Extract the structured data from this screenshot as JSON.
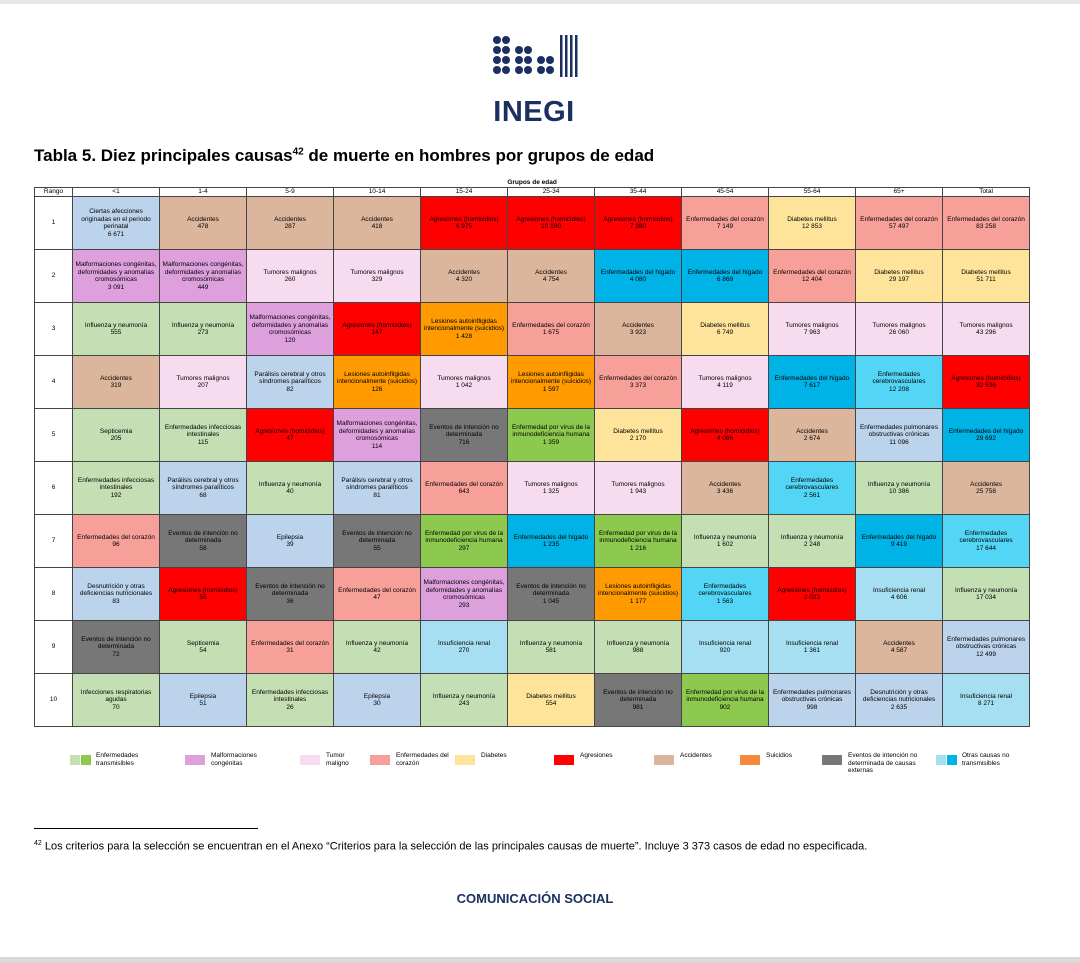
{
  "header": {
    "logo_text": "INEGI"
  },
  "title": {
    "text": "Tabla 5. Diez principales causas",
    "sup": "42",
    "rest": " de muerte en hombres por grupos de edad"
  },
  "colors": {
    "tr": "#c4dfb4",
    "mc": "#dda0dd",
    "tm": "#f6dcee",
    "ec": "#f7a09a",
    "db": "#fde49a",
    "ag": "#ff0000",
    "ac": "#dbb59c",
    "su": "#ff9a00",
    "ei": "#777777",
    "ot": "#a6dff2",
    "li": "#bcd3ec",
    "vi": "#8cc94e",
    "hi": "#00b3e6",
    "cv": "#53d6f5"
  },
  "table": {
    "group_header": "Grupos de edad",
    "headers": [
      "Rango",
      "<1",
      "1-4",
      "5-9",
      "10-14",
      "15-24",
      "25-34",
      "35-44",
      "45-54",
      "55-64",
      "65+",
      "Total"
    ],
    "rows": [
      {
        "rank": "1",
        "cells": [
          [
            "Ciertas afecciones originadas en el periodo perinatal",
            "6 671",
            "li"
          ],
          [
            "Accidentes",
            "478",
            "ac"
          ],
          [
            "Accidentes",
            "287",
            "ac"
          ],
          [
            "Accidentes",
            "418",
            "ac"
          ],
          [
            "Agresiones (homicidios)",
            "6 975",
            "ag"
          ],
          [
            "Agresiones (homicidios)",
            "10 180",
            "ag"
          ],
          [
            "Agresiones (homicidios)",
            "7 380",
            "ag"
          ],
          [
            "Enfermedades del corazón",
            "7 149",
            "ec"
          ],
          [
            "Diabetes mellitus",
            "12 853",
            "db"
          ],
          [
            "Enfermedades del corazón",
            "57 497",
            "ec"
          ],
          [
            "Enfermedades del corazón",
            "83 258",
            "ec"
          ]
        ]
      },
      {
        "rank": "2",
        "cells": [
          [
            "Malformaciones congénitas, deformidades y anomalías cromosómicas",
            "3 091",
            "mc"
          ],
          [
            "Malformaciones congénitas, deformidades y anomalías cromosómicas",
            "449",
            "mc"
          ],
          [
            "Tumores malignos",
            "260",
            "tm"
          ],
          [
            "Tumores malignos",
            "329",
            "tm"
          ],
          [
            "Accidentes",
            "4 320",
            "ac"
          ],
          [
            "Accidentes",
            "4 754",
            "ac"
          ],
          [
            "Enfermedades del hígado",
            "4 080",
            "hi"
          ],
          [
            "Enfermedades del hígado",
            "6 869",
            "hi"
          ],
          [
            "Enfermedades del corazón",
            "12 404",
            "ec"
          ],
          [
            "Diabetes mellitus",
            "29 197",
            "db"
          ],
          [
            "Diabetes mellitus",
            "51 711",
            "db"
          ]
        ]
      },
      {
        "rank": "3",
        "cells": [
          [
            "Influenza y neumonía",
            "555",
            "tr"
          ],
          [
            "Influenza y neumonía",
            "273",
            "tr"
          ],
          [
            "Malformaciones congénitas, deformidades y anomalías cromosómicas",
            "120",
            "mc"
          ],
          [
            "Agresiones (homicidios)",
            "147",
            "ag"
          ],
          [
            "Lesiones autoinfligidas intencionalmente (suicidios)",
            "1 428",
            "su"
          ],
          [
            "Enfermedades del corazón",
            "1 675",
            "ec"
          ],
          [
            "Accidentes",
            "3 923",
            "ac"
          ],
          [
            "Diabetes mellitus",
            "6 749",
            "db"
          ],
          [
            "Tumores malignos",
            "7 963",
            "tm"
          ],
          [
            "Tumores malignos",
            "26 060",
            "tm"
          ],
          [
            "Tumores malignos",
            "43 296",
            "tm"
          ]
        ]
      },
      {
        "rank": "4",
        "cells": [
          [
            "Accidentes",
            "319",
            "ac"
          ],
          [
            "Tumores malignos",
            "207",
            "tm"
          ],
          [
            "Parálisis cerebral y otros síndromes paralíticos",
            "82",
            "li"
          ],
          [
            "Lesiones autoinfligidas intencionalmente (suicidios)",
            "126",
            "su"
          ],
          [
            "Tumores malignos",
            "1 042",
            "tm"
          ],
          [
            "Lesiones autoinfligidas intencionalmente (suicidios)",
            "1 597",
            "su"
          ],
          [
            "Enfermedades del corazón",
            "3 373",
            "ec"
          ],
          [
            "Tumores malignos",
            "4 119",
            "tm"
          ],
          [
            "Enfermedades del hígado",
            "7 617",
            "hi"
          ],
          [
            "Enfermedades cerebrovasculares",
            "12 208",
            "cv"
          ],
          [
            "Agresiones (homicidios)",
            "32 536",
            "ag"
          ]
        ]
      },
      {
        "rank": "5",
        "cells": [
          [
            "Septicemia",
            "205",
            "tr"
          ],
          [
            "Enfermedades infecciosas intestinales",
            "115",
            "tr"
          ],
          [
            "Agresiones (homicidios)",
            "47",
            "ag"
          ],
          [
            "Malformaciones congénitas, deformidades y anomalías cromosómicas",
            "114",
            "mc"
          ],
          [
            "Eventos de intención no determinada",
            "716",
            "ei"
          ],
          [
            "Enfermedad por virus de la inmunodeficiencia humana",
            "1 359",
            "vi"
          ],
          [
            "Diabetes mellitus",
            "2 170",
            "db"
          ],
          [
            "Agresiones (homicidios)",
            "4 066",
            "ag"
          ],
          [
            "Accidentes",
            "2 674",
            "ac"
          ],
          [
            "Enfermedades pulmonares obstructivas crónicas",
            "11 096",
            "li"
          ],
          [
            "Enfermedades del hígado",
            "29 692",
            "hi"
          ]
        ]
      },
      {
        "rank": "6",
        "cells": [
          [
            "Enfermedades infecciosas intestinales",
            "192",
            "tr"
          ],
          [
            "Parálisis cerebral y otros síndromes paralíticos",
            "68",
            "li"
          ],
          [
            "Influenza y neumonía",
            "40",
            "tr"
          ],
          [
            "Parálisis cerebral y otros síndromes paralíticos",
            "81",
            "li"
          ],
          [
            "Enfermedades del corazón",
            "643",
            "ec"
          ],
          [
            "Tumores malignos",
            "1 325",
            "tm"
          ],
          [
            "Tumores malignos",
            "1 943",
            "tm"
          ],
          [
            "Accidentes",
            "3 436",
            "ac"
          ],
          [
            "Enfermedades cerebrovasculares",
            "2 561",
            "cv"
          ],
          [
            "Influenza y neumonía",
            "10 386",
            "tr"
          ],
          [
            "Accidentes",
            "25 758",
            "ac"
          ]
        ]
      },
      {
        "rank": "7",
        "cells": [
          [
            "Enfermedades del corazón",
            "96",
            "ec"
          ],
          [
            "Eventos de intención no determinada",
            "58",
            "ei"
          ],
          [
            "Epilepsia",
            "39",
            "li"
          ],
          [
            "Eventos de intención no determinada",
            "55",
            "ei"
          ],
          [
            "Enfermedad por virus de la inmunodeficiencia humana",
            "297",
            "vi"
          ],
          [
            "Enfermedades del hígado",
            "1 235",
            "hi"
          ],
          [
            "Enfermedad por virus de la inmunodeficiencia humana",
            "1 216",
            "vi"
          ],
          [
            "Influenza y neumonía",
            "1 602",
            "tr"
          ],
          [
            "Influenza y neumonía",
            "2 248",
            "tr"
          ],
          [
            "Enfermedades del hígado",
            "9 419",
            "hi"
          ],
          [
            "Enfermedades cerebrovasculares",
            "17 644",
            "cv"
          ]
        ]
      },
      {
        "rank": "8",
        "cells": [
          [
            "Desnutrición y otras deficiencias nutricionales",
            "83",
            "li"
          ],
          [
            "Agresiones (homicidios)",
            "55",
            "ag"
          ],
          [
            "Eventos de intención no determinada",
            "36",
            "ei"
          ],
          [
            "Enfermedades del corazón",
            "47",
            "ec"
          ],
          [
            "Malformaciones congénitas, deformidades y anomalías cromosómicas",
            "293",
            "mc"
          ],
          [
            "Eventos de intención no determinada",
            "1 045",
            "ei"
          ],
          [
            "Lesiones autoinfligidas intencionalmente (suicidios)",
            "1 177",
            "su"
          ],
          [
            "Enfermedades cerebrovasculares",
            "1 563",
            "cv"
          ],
          [
            "Agresiones (homicidios)",
            "2 023",
            "ag"
          ],
          [
            "Insuficiencia renal",
            "4 606",
            "ot"
          ],
          [
            "Influenza y neumonía",
            "17 034",
            "tr"
          ]
        ]
      },
      {
        "rank": "9",
        "cells": [
          [
            "Eventos de intención no determinada",
            "72",
            "ei"
          ],
          [
            "Septicemia",
            "54",
            "tr"
          ],
          [
            "Enfermedades del corazón",
            "31",
            "ec"
          ],
          [
            "Influenza y neumonía",
            "42",
            "tr"
          ],
          [
            "Insuficiencia renal",
            "270",
            "ot"
          ],
          [
            "Influenza y neumonía",
            "581",
            "tr"
          ],
          [
            "Influenza y neumonía",
            "988",
            "tr"
          ],
          [
            "Insuficiencia renal",
            "920",
            "ot"
          ],
          [
            "Insuficiencia renal",
            "1 361",
            "ot"
          ],
          [
            "Accidentes",
            "4 587",
            "ac"
          ],
          [
            "Enfermedades pulmonares obstructivas crónicas",
            "12 499",
            "li"
          ]
        ]
      },
      {
        "rank": "10",
        "cells": [
          [
            "Infecciones respiratorias agudas",
            "70",
            "tr"
          ],
          [
            "Epilepsia",
            "51",
            "li"
          ],
          [
            "Enfermedades infecciosas intestinales",
            "26",
            "tr"
          ],
          [
            "Epilepsia",
            "30",
            "li"
          ],
          [
            "Influenza y neumonía",
            "243",
            "tr"
          ],
          [
            "Diabetes mellitus",
            "554",
            "db"
          ],
          [
            "Eventos de intención no determinada",
            "981",
            "ei"
          ],
          [
            "Enfermedad por virus de la inmunodeficiencia humana",
            "902",
            "vi"
          ],
          [
            "Enfermedades pulmonares obstructivas crónicas",
            "998",
            "li"
          ],
          [
            "Desnutrición y otras deficiencias nutricionales",
            "2 635",
            "li"
          ],
          [
            "Insuficiencia renal",
            "8 271",
            "ot"
          ]
        ]
      }
    ]
  },
  "legend": [
    {
      "label": "Enfermedades transmisibles",
      "colors": [
        "#c4dfb4",
        "#8cc94e"
      ]
    },
    {
      "label": "Malformaciones congénitas",
      "colors": [
        "#dda0dd"
      ]
    },
    {
      "label": "Tumor maligno",
      "colors": [
        "#f6dcee"
      ]
    },
    {
      "label": "Enfermedades del corazón",
      "colors": [
        "#f7a09a"
      ]
    },
    {
      "label": "Diabetes",
      "colors": [
        "#fde49a"
      ]
    },
    {
      "label": "Agresiones",
      "colors": [
        "#ff0000"
      ]
    },
    {
      "label": "Accidentes",
      "colors": [
        "#dbb59c"
      ]
    },
    {
      "label": "Suicidios",
      "colors": [
        "#f5883a"
      ]
    },
    {
      "label": "Eventos de intención no determinada de causas externas",
      "colors": [
        "#777777"
      ]
    },
    {
      "label": "Otras causas no transmisibles",
      "colors": [
        "#a6dff2",
        "#00b3e6"
      ]
    }
  ],
  "footnote": {
    "sup": "42",
    "text": " Los criterios para la selección se encuentran en el Anexo “Criterios para la selección de las principales causas de muerte”. Incluye 3 373 casos de edad no especificada."
  },
  "footer": {
    "text": "COMUNICACIÓN SOCIAL"
  }
}
